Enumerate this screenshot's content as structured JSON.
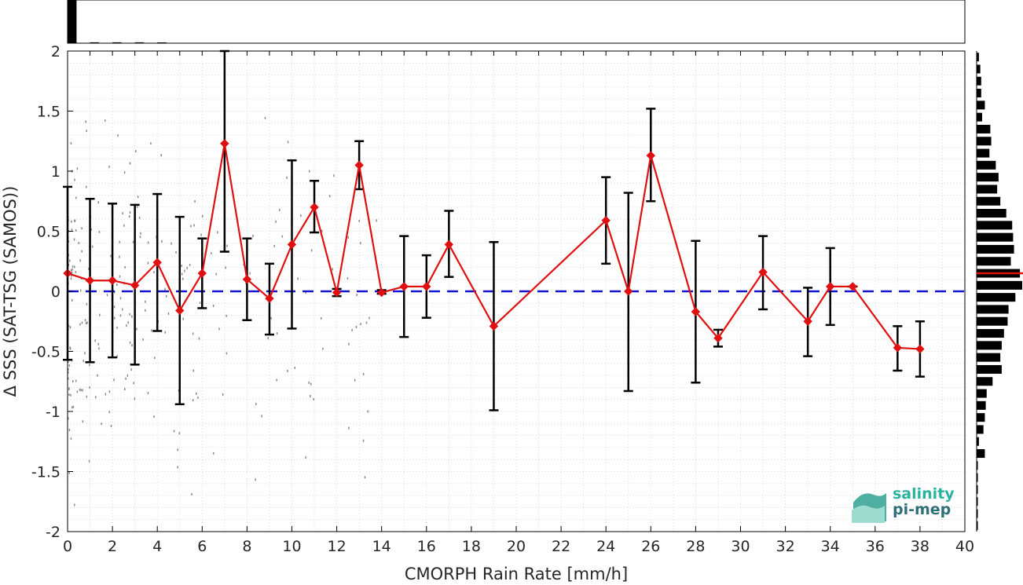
{
  "chart_data": {
    "type": "line",
    "xlabel": "CMORPH Rain Rate [mm/h]",
    "ylabel": "Δ SSS (SAT-TSG (SAMOS))",
    "xlim": [
      0,
      40
    ],
    "ylim": [
      -2,
      2
    ],
    "xticks": [
      "0",
      "2",
      "4",
      "6",
      "8",
      "10",
      "12",
      "14",
      "16",
      "18",
      "20",
      "22",
      "24",
      "26",
      "28",
      "30",
      "32",
      "34",
      "36",
      "38",
      "40"
    ],
    "yticks": [
      "-2",
      "-1.5",
      "-1",
      "-0.5",
      "0",
      "0.5",
      "1",
      "1.5",
      "2"
    ],
    "grid": true,
    "reference_line": {
      "y": 0,
      "style": "dashed",
      "color": "#1515d0"
    },
    "series": [
      {
        "color": "#e01010",
        "marker": "diamond",
        "points": [
          {
            "x": 0,
            "y": 0.15,
            "lo": -0.57,
            "hi": 0.87
          },
          {
            "x": 1,
            "y": 0.09,
            "lo": -0.59,
            "hi": 0.77
          },
          {
            "x": 2,
            "y": 0.09,
            "lo": -0.55,
            "hi": 0.73
          },
          {
            "x": 3,
            "y": 0.05,
            "lo": -0.61,
            "hi": 0.72
          },
          {
            "x": 4,
            "y": 0.24,
            "lo": -0.33,
            "hi": 0.81
          },
          {
            "x": 5,
            "y": -0.16,
            "lo": -0.94,
            "hi": 0.62
          },
          {
            "x": 6,
            "y": 0.15,
            "lo": -0.14,
            "hi": 0.44
          },
          {
            "x": 7,
            "y": 1.23,
            "lo": 0.33,
            "hi": 2.0
          },
          {
            "x": 8,
            "y": 0.1,
            "lo": -0.24,
            "hi": 0.44
          },
          {
            "x": 9,
            "y": -0.06,
            "lo": -0.36,
            "hi": 0.23
          },
          {
            "x": 10,
            "y": 0.39,
            "lo": -0.31,
            "hi": 1.09
          },
          {
            "x": 11,
            "y": 0.7,
            "lo": 0.49,
            "hi": 0.92
          },
          {
            "x": 12,
            "y": -0.01,
            "lo": -0.04,
            "hi": 0.02
          },
          {
            "x": 13,
            "y": 1.05,
            "lo": 0.85,
            "hi": 1.25
          },
          {
            "x": 14,
            "y": -0.01,
            "lo": -0.02,
            "hi": 0.01
          },
          {
            "x": 15,
            "y": 0.04,
            "lo": -0.38,
            "hi": 0.46
          },
          {
            "x": 16,
            "y": 0.04,
            "lo": -0.22,
            "hi": 0.3
          },
          {
            "x": 17,
            "y": 0.39,
            "lo": 0.12,
            "hi": 0.67
          },
          {
            "x": 19,
            "y": -0.29,
            "lo": -0.99,
            "hi": 0.41
          },
          {
            "x": 24,
            "y": 0.59,
            "lo": 0.23,
            "hi": 0.95
          },
          {
            "x": 25,
            "y": 0.0,
            "lo": -0.83,
            "hi": 0.82
          },
          {
            "x": 26,
            "y": 1.13,
            "lo": 0.75,
            "hi": 1.52
          },
          {
            "x": 28,
            "y": -0.17,
            "lo": -0.76,
            "hi": 0.42
          },
          {
            "x": 29,
            "y": -0.39,
            "lo": -0.46,
            "hi": -0.32
          },
          {
            "x": 31,
            "y": 0.16,
            "lo": -0.15,
            "hi": 0.46
          },
          {
            "x": 33,
            "y": -0.25,
            "lo": -0.54,
            "hi": 0.03
          },
          {
            "x": 34,
            "y": 0.04,
            "lo": -0.28,
            "hi": 0.36
          },
          {
            "x": 35,
            "y": 0.04,
            "lo": 0.04,
            "hi": 0.04
          },
          {
            "x": 37,
            "y": -0.47,
            "lo": -0.66,
            "hi": -0.29
          },
          {
            "x": 38,
            "y": -0.48,
            "lo": -0.71,
            "hi": -0.25
          }
        ]
      }
    ],
    "top_histogram": {
      "color": "#000000",
      "bin_width": 1,
      "x": [
        0,
        1,
        2,
        3,
        4
      ],
      "values": [
        1.0,
        0.02,
        0.02,
        0.02,
        0.01
      ]
    },
    "right_histogram": {
      "color": "#000000",
      "bin_width": 0.1,
      "y": [
        1.95,
        1.85,
        1.75,
        1.65,
        1.55,
        1.45,
        1.35,
        1.25,
        1.15,
        1.05,
        0.95,
        0.85,
        0.75,
        0.65,
        0.55,
        0.45,
        0.35,
        0.25,
        0.15,
        0.05,
        -0.05,
        -0.15,
        -0.25,
        -0.35,
        -0.45,
        -0.55,
        -0.65,
        -0.75,
        -0.85,
        -0.95,
        -1.05,
        -1.15,
        -1.25,
        -1.35,
        -1.45,
        -1.55,
        -1.65,
        -1.75,
        -1.85,
        -1.95
      ],
      "values": [
        0.05,
        0.08,
        0.1,
        0.1,
        0.18,
        0.12,
        0.3,
        0.32,
        0.28,
        0.42,
        0.48,
        0.45,
        0.52,
        0.65,
        0.78,
        0.8,
        0.82,
        0.75,
        0.95,
        1.0,
        0.85,
        0.7,
        0.68,
        0.6,
        0.55,
        0.52,
        0.55,
        0.35,
        0.22,
        0.2,
        0.18,
        0.15,
        0.05,
        0.18,
        0.02,
        0.02,
        0.02,
        0.02,
        0.02,
        0.02
      ],
      "mean_line": {
        "y": 0.15,
        "color": "#e01010"
      }
    }
  },
  "logo": {
    "line1": "salinity",
    "line2": "pi-mep"
  }
}
